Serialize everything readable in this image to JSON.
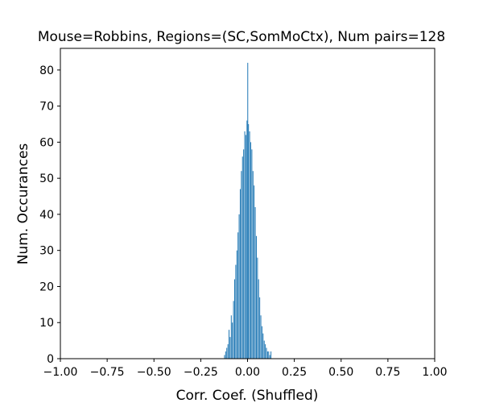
{
  "chart_data": {
    "type": "bar",
    "title": "Mouse=Robbins, Regions=(SC,SomMoCtx), Num pairs=128",
    "xlabel": "Corr. Coef. (Shuffled)",
    "ylabel": "Num. Occurances",
    "xlim": [
      -1.0,
      1.0
    ],
    "ylim": [
      0,
      86
    ],
    "xticks": [
      -1.0,
      -0.75,
      -0.5,
      -0.25,
      0.0,
      0.25,
      0.5,
      0.75,
      1.0
    ],
    "xtick_labels": [
      "−1.00",
      "−0.75",
      "−0.50",
      "−0.25",
      "0.00",
      "0.25",
      "0.50",
      "0.75",
      "1.00"
    ],
    "yticks": [
      0,
      10,
      20,
      30,
      40,
      50,
      60,
      70,
      80
    ],
    "ytick_labels": [
      "0",
      "10",
      "20",
      "30",
      "40",
      "50",
      "60",
      "70",
      "80"
    ],
    "grid": false,
    "bar_color": "#1f77b4",
    "bin_width": 0.002,
    "x": [
      -0.124,
      -0.118,
      -0.112,
      -0.106,
      -0.1,
      -0.094,
      -0.088,
      -0.082,
      -0.076,
      -0.07,
      -0.064,
      -0.058,
      -0.052,
      -0.046,
      -0.04,
      -0.034,
      -0.028,
      -0.022,
      -0.016,
      -0.01,
      -0.004,
      0.0,
      0.004,
      0.01,
      0.016,
      0.022,
      0.028,
      0.034,
      0.04,
      0.046,
      0.052,
      0.058,
      0.064,
      0.07,
      0.076,
      0.082,
      0.088,
      0.094,
      0.1,
      0.106,
      0.112,
      0.118,
      0.124
    ],
    "values": [
      1,
      2,
      3,
      4,
      8,
      6,
      12,
      10,
      16,
      22,
      26,
      30,
      35,
      40,
      47,
      52,
      56,
      58,
      63,
      62,
      66,
      82,
      65,
      63,
      60,
      58,
      52,
      48,
      42,
      34,
      28,
      22,
      17,
      12,
      9,
      7,
      5,
      4,
      3,
      2,
      2,
      1,
      2
    ]
  }
}
